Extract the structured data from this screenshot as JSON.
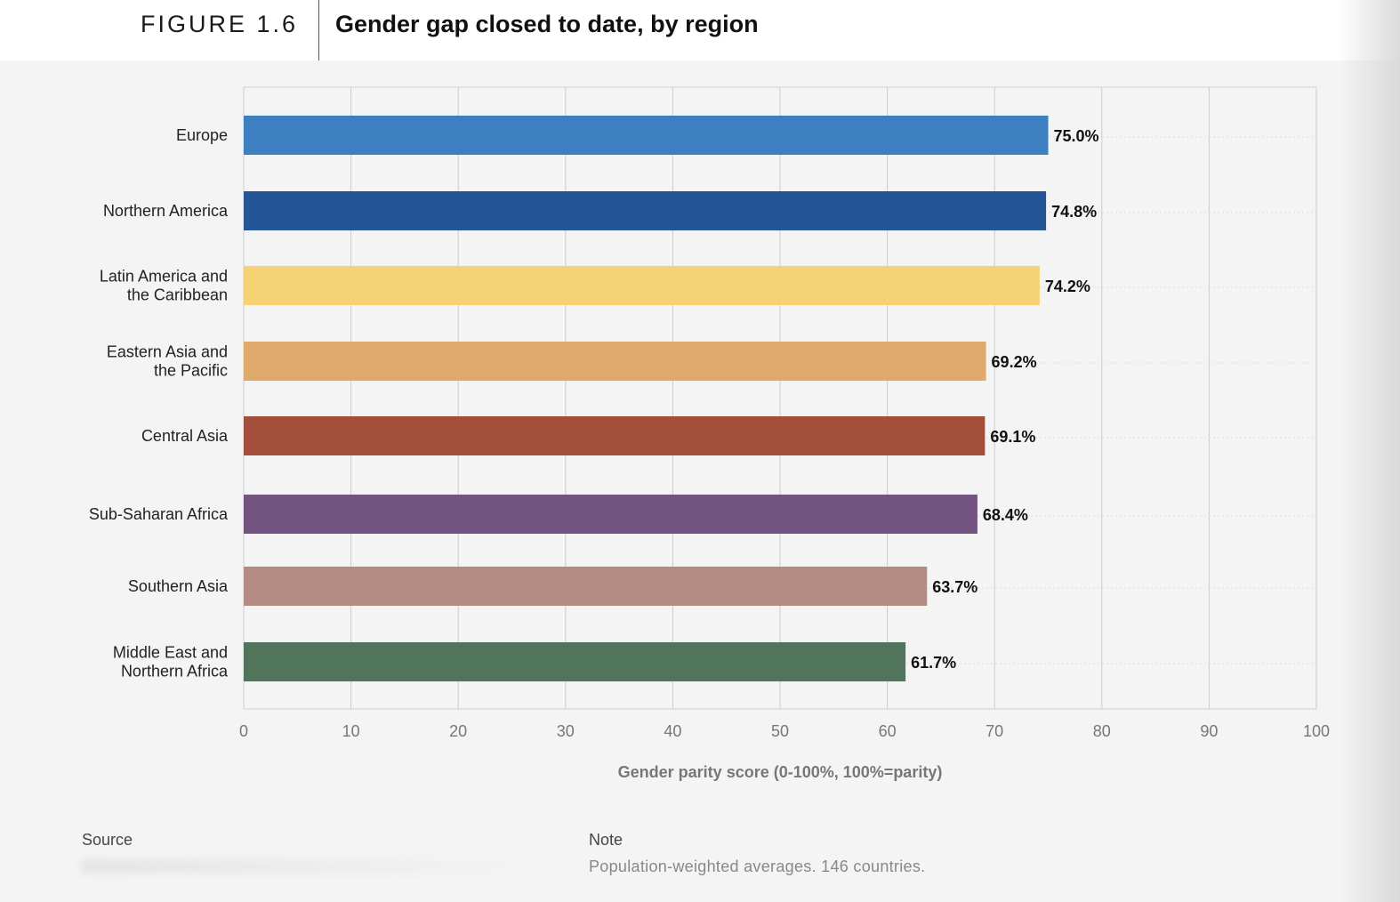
{
  "header": {
    "figure_label": "FIGURE 1.6",
    "title": "Gender gap closed to date, by region"
  },
  "chart_data": {
    "type": "bar",
    "orientation": "horizontal",
    "title": "Gender gap closed to date, by region",
    "xlabel": "Gender parity score (0-100%, 100%=parity)",
    "ylabel": "",
    "xlim": [
      0,
      100
    ],
    "xticks": [
      0,
      10,
      20,
      30,
      40,
      50,
      60,
      70,
      80,
      90,
      100
    ],
    "grid": true,
    "categories": [
      [
        "Europe"
      ],
      [
        "Northern America"
      ],
      [
        "Latin America and",
        "the Caribbean"
      ],
      [
        "Eastern Asia and",
        "the Pacific"
      ],
      [
        "Central Asia"
      ],
      [
        "Sub-Saharan Africa"
      ],
      [
        "Southern Asia"
      ],
      [
        "Middle East and",
        "Northern Africa"
      ]
    ],
    "values": [
      75.0,
      74.8,
      74.2,
      69.2,
      69.1,
      68.4,
      63.7,
      61.7
    ],
    "value_labels": [
      "75.0%",
      "74.8%",
      "74.2%",
      "69.2%",
      "69.1%",
      "68.4%",
      "63.7%",
      "61.7%"
    ],
    "colors": [
      "#3d80c1",
      "#245597",
      "#f5d273",
      "#dfa96b",
      "#a34d3b",
      "#735480",
      "#b38b83",
      "#51755b"
    ]
  },
  "footer": {
    "source_heading": "Source",
    "note_heading": "Note",
    "note_text": "Population-weighted averages. 146 countries."
  }
}
